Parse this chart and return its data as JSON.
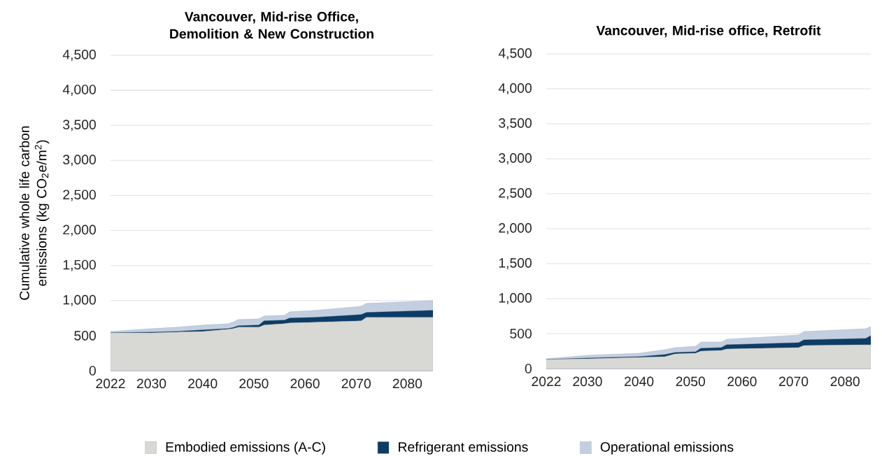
{
  "chart_data": [
    {
      "type": "area",
      "stacked": true,
      "title": "Vancouver, Mid-rise Office, Demolition & New Construction",
      "ylabel": "Cumulative whole life carbon emissions (kg CO$_{2}$e/m$^{2}$)",
      "x": [
        2022,
        2030,
        2035,
        2040,
        2045,
        2046,
        2047,
        2051,
        2052,
        2056,
        2057,
        2062,
        2071,
        2072,
        2085
      ],
      "xlim": [
        2022,
        2085
      ],
      "xticks": [
        2022,
        2030,
        2040,
        2050,
        2060,
        2070,
        2080
      ],
      "ylim": [
        0,
        4500
      ],
      "yticks": [
        0,
        500,
        {
          "value": 1000,
          "label": "1,000"
        },
        {
          "value": 1500,
          "label": "1,500"
        },
        {
          "value": 2000,
          "label": "2,000"
        },
        {
          "value": 2500,
          "label": "2,500"
        },
        {
          "value": 3000,
          "label": "3,000"
        },
        {
          "value": 3500,
          "label": "3,500"
        },
        {
          "value": 4000,
          "label": "4,000"
        },
        {
          "value": 4500,
          "label": "4,500"
        }
      ],
      "grid": "y",
      "legend": "bottom",
      "series": [
        {
          "name": "Embodied emissions (A-C)",
          "color": "#d8d8d5",
          "values": [
            540,
            540,
            550,
            560,
            590,
            600,
            620,
            620,
            650,
            670,
            680,
            690,
            710,
            760,
            760
          ]
        },
        {
          "name": "Refrigerant emissions",
          "color": "#0d3d66",
          "values": [
            0,
            10,
            10,
            20,
            10,
            15,
            20,
            30,
            60,
            50,
            70,
            70,
            90,
            70,
            100
          ]
        },
        {
          "name": "Operational emissions",
          "color": "#c3cfe0",
          "values": [
            20,
            50,
            60,
            70,
            70,
            80,
            90,
            90,
            70,
            70,
            90,
            100,
            120,
            130,
            140
          ]
        }
      ]
    },
    {
      "type": "area",
      "stacked": true,
      "title": "Vancouver, Mid-rise office, Retrofit",
      "x": [
        2022,
        2030,
        2040,
        2045,
        2047,
        2051,
        2052,
        2056,
        2057,
        2071,
        2072,
        2084,
        2085
      ],
      "xlim": [
        2022,
        2085
      ],
      "xticks": [
        2022,
        2030,
        2040,
        2050,
        2060,
        2070,
        2080
      ],
      "ylim": [
        0,
        4500
      ],
      "yticks": [
        0,
        500,
        {
          "value": 1000,
          "label": "1,000"
        },
        {
          "value": 1500,
          "label": "1,500"
        },
        {
          "value": 2000,
          "label": "2,000"
        },
        {
          "value": 2500,
          "label": "2,500"
        },
        {
          "value": 3000,
          "label": "3,000"
        },
        {
          "value": 3500,
          "label": "3,500"
        },
        {
          "value": 4000,
          "label": "4,000"
        },
        {
          "value": 4500,
          "label": "4,500"
        }
      ],
      "grid": "y",
      "series": [
        {
          "color": "#d8d8d5",
          "values": [
            130,
            140,
            160,
            170,
            210,
            220,
            250,
            260,
            280,
            300,
            330,
            340,
            340
          ]
        },
        {
          "color": "#0d3d66",
          "values": [
            0,
            10,
            10,
            30,
            20,
            20,
            40,
            40,
            60,
            70,
            80,
            90,
            130
          ]
        },
        {
          "color": "#c3cfe0",
          "values": [
            10,
            40,
            50,
            70,
            70,
            80,
            90,
            80,
            80,
            110,
            120,
            140,
            130
          ]
        }
      ]
    }
  ]
}
